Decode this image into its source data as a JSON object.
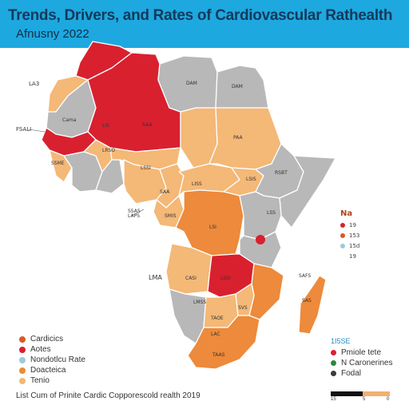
{
  "header": {
    "title": "Trends, Drivers, and Rates of Cardiovascular Rathealth",
    "subtitle": "Afnusny 2022"
  },
  "colors": {
    "header_bg": "#1ea8e0",
    "red": "#d9202f",
    "dark_orange": "#ed8a3b",
    "light_orange": "#f4b877",
    "gray": "#b8b8b8"
  },
  "map_labels": {
    "n1": "LSI",
    "n2": "DAM",
    "n3": "DAM",
    "n4": "Cama",
    "n5": "SAA",
    "n6": "PAA",
    "n7": "LRSO",
    "n8": "SSME",
    "n9": "LSSI",
    "n10": "RSBT",
    "n11": "SAA",
    "n12": "LISS",
    "n13": "SSAS",
    "n14": "LAPS",
    "n15": "LSS",
    "n16": "LSI",
    "n17": "CASI",
    "n18": "LSSI",
    "n19": "LSIS",
    "n20": "SMIS",
    "n21": "SAFS",
    "n22": "SVS",
    "n23": "TAOE",
    "s1": "LMSS",
    "s2": "LAC",
    "s3": "SAS",
    "s4": "TAAS"
  },
  "side_labels": {
    "left1": "LA3",
    "left2": "FSALI",
    "left3": "LMA"
  },
  "legend_main": [
    {
      "label": "Cardicics",
      "color": "#d85b27"
    },
    {
      "label": "Aotes",
      "color": "#d9202f"
    },
    {
      "label": "Nondotlcu Rate",
      "color": "#9fc8dd"
    },
    {
      "label": "Doacteica",
      "color": "#ed8a3b"
    },
    {
      "label": "Tenio",
      "color": "#f4b877"
    }
  ],
  "legend_right": {
    "title": "Na",
    "items": [
      {
        "label": "19",
        "color": "#d9202f"
      },
      {
        "label": "153",
        "color": "#d85b27"
      },
      {
        "label": "15d",
        "color": "#9fc8dd"
      },
      {
        "label": "19",
        "color": ""
      }
    ]
  },
  "legend_bottom_right": {
    "title": "1I5SE",
    "items": [
      {
        "label": "Pmiole tete",
        "color": "#d9202f"
      },
      {
        "label": "N Caronerines",
        "color": "#2a8a3a"
      },
      {
        "label": "Fodal",
        "color": "#3a3a3a"
      }
    ]
  },
  "scale": {
    "left": "15",
    "mid": "5",
    "right": "0"
  },
  "footnote": "List Cum of Prinite Cardic Copporescold realth 2019"
}
